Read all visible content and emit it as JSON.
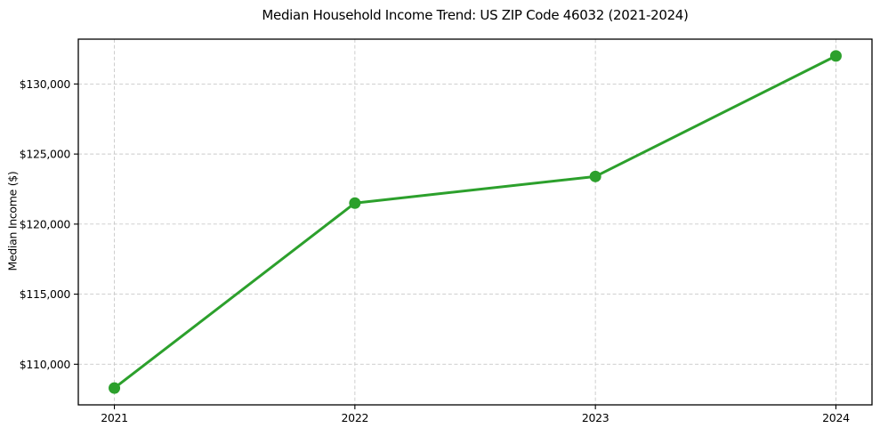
{
  "chart_data": {
    "type": "line",
    "title": "Median Household Income Trend: US ZIP Code 46032 (2021-2024)",
    "xlabel": "",
    "ylabel": "Median Income ($)",
    "x": [
      2021,
      2022,
      2023,
      2024
    ],
    "series": [
      {
        "name": "Median Household Income",
        "values": [
          108300,
          121500,
          123400,
          132000
        ],
        "color": "#2ca02c",
        "marker": "circle"
      }
    ],
    "x_ticks": {
      "values": [
        2021,
        2022,
        2023,
        2024
      ],
      "labels": [
        "2021",
        "2022",
        "2023",
        "2024"
      ]
    },
    "y_ticks": {
      "values": [
        110000,
        115000,
        120000,
        125000,
        130000
      ],
      "labels": [
        "$110,000",
        "$115,000",
        "$120,000",
        "$125,000",
        "$130,000"
      ]
    },
    "xlim": [
      2020.85,
      2024.15
    ],
    "ylim": [
      107100,
      133200
    ],
    "grid": true,
    "grid_style": "dashed",
    "legend": "none",
    "colors": {
      "line": "#2ca02c",
      "grid": "#c9c9c9",
      "spine": "#000000",
      "text": "#000000",
      "background": "#ffffff"
    }
  }
}
